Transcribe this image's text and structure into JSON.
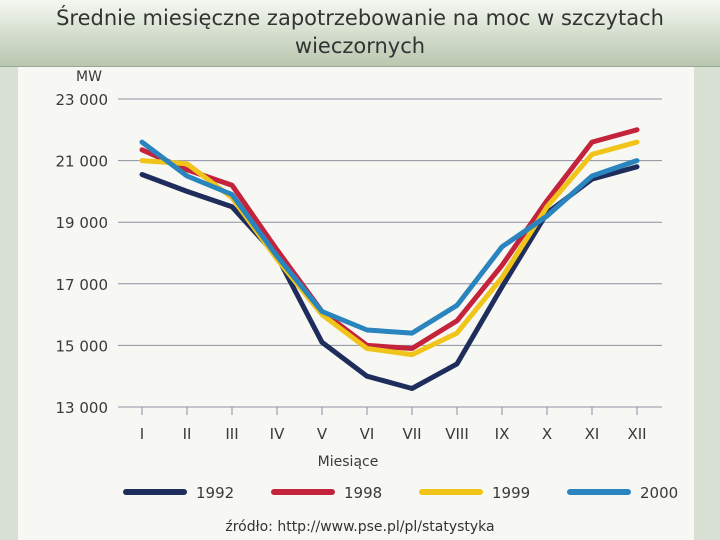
{
  "title": "Średnie miesięczne zapotrzebowanie na moc w szczytach wieczornych",
  "source": "źródło: http://www.pse.pl/pl/statystyka",
  "chart_data": {
    "type": "line",
    "ylabel": "MW",
    "xlabel": "Miesiące",
    "ylim": [
      13000,
      23000
    ],
    "yticks": [
      23000,
      21000,
      19000,
      17000,
      15000,
      13000
    ],
    "ytick_labels": [
      "23 000",
      "21 000",
      "19 000",
      "17 000",
      "15 000",
      "13 000"
    ],
    "categories": [
      "I",
      "II",
      "III",
      "IV",
      "V",
      "VI",
      "VII",
      "VIII",
      "IX",
      "X",
      "XI",
      "XII"
    ],
    "grid": true,
    "legend_position": "bottom",
    "series": [
      {
        "name": "1992",
        "color": "#1f2d5c",
        "values": [
          20550,
          20000,
          19500,
          17900,
          15100,
          14000,
          13600,
          14400,
          16900,
          19300,
          20400,
          20800
        ]
      },
      {
        "name": "1998",
        "color": "#c4243b",
        "values": [
          21350,
          20700,
          20200,
          18100,
          16100,
          15000,
          14900,
          15800,
          17600,
          19700,
          21600,
          22000
        ]
      },
      {
        "name": "1999",
        "color": "#f0c419",
        "values": [
          21000,
          20900,
          19800,
          17800,
          16000,
          14900,
          14700,
          15400,
          17200,
          19500,
          21200,
          21600
        ]
      },
      {
        "name": "2000",
        "color": "#2a84be",
        "values": [
          21600,
          20500,
          19900,
          17900,
          16100,
          15500,
          15400,
          16300,
          18200,
          19200,
          20500,
          21000
        ]
      }
    ]
  }
}
